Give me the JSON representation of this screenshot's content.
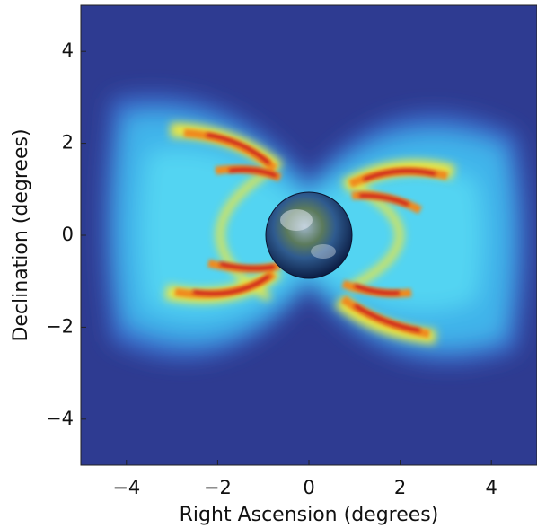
{
  "chart_data": {
    "type": "image",
    "xlabel": "Right Ascension (degrees)",
    "ylabel": "Declination (degrees)",
    "xlim": [
      -5,
      5
    ],
    "ylim": [
      -5,
      5
    ],
    "xticks": [
      {
        "value": -4,
        "label": "−4"
      },
      {
        "value": -2,
        "label": "−2"
      },
      0,
      2,
      4
    ],
    "yticks": [
      {
        "value": -4,
        "label": "−4"
      },
      {
        "value": -2,
        "label": "−2"
      },
      0,
      2,
      4
    ],
    "background_color": "#2e3b91"
  }
}
